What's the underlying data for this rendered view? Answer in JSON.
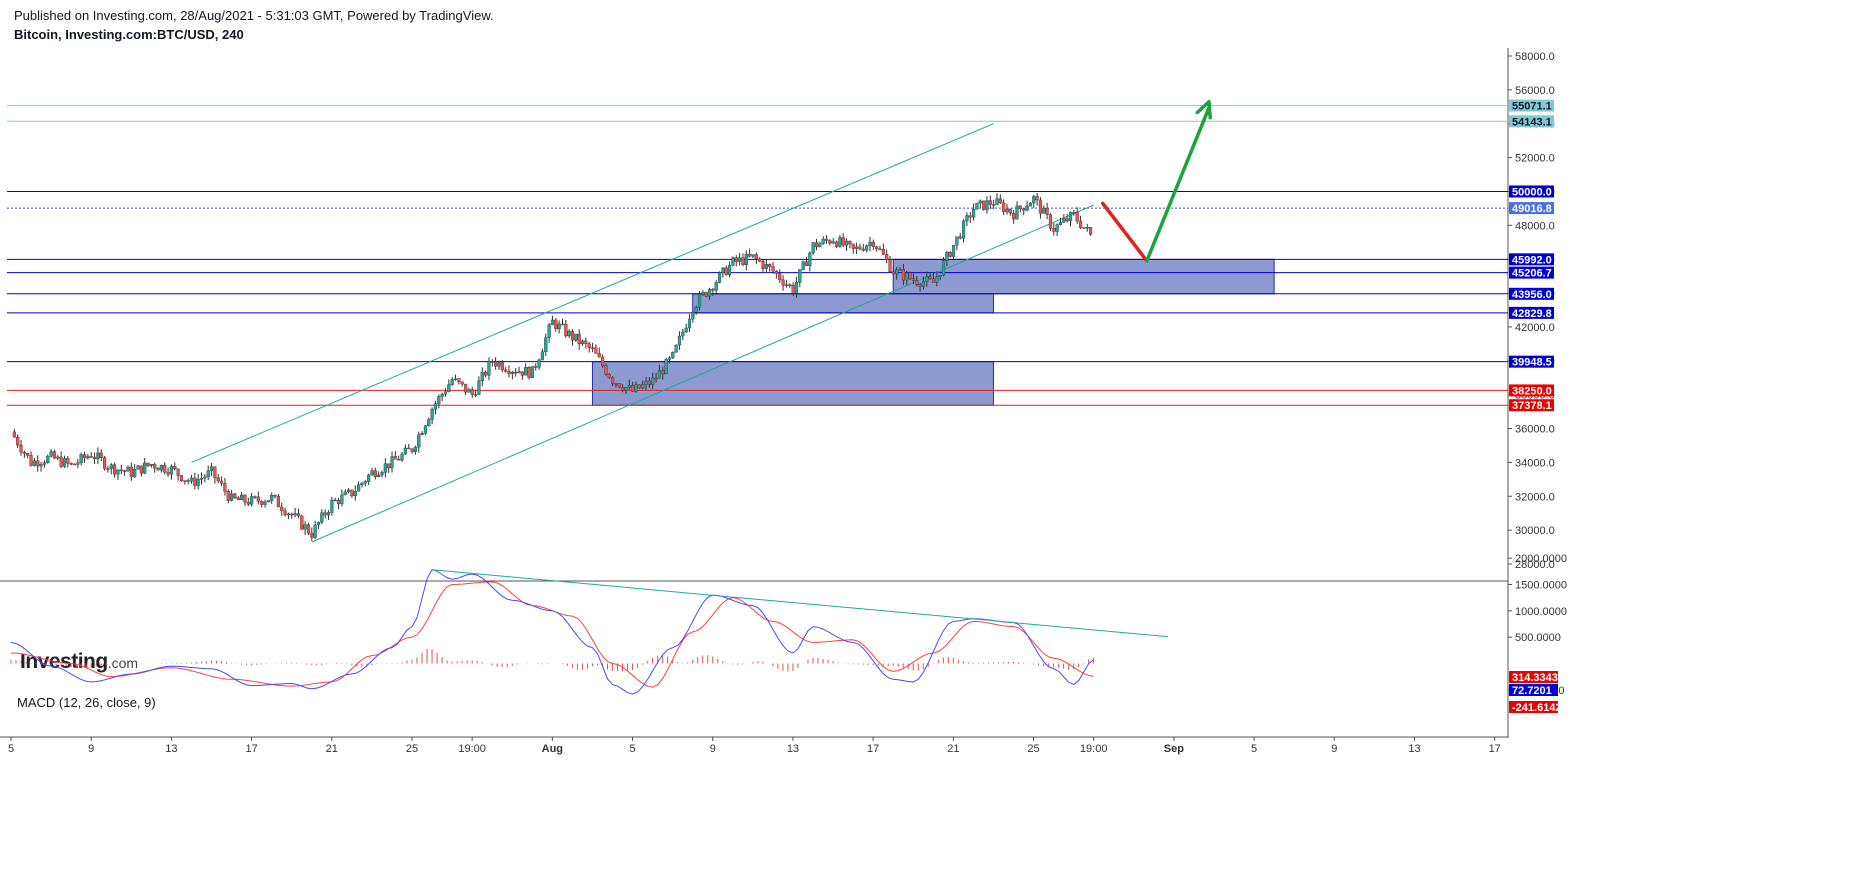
{
  "header": {
    "published": "Published on Investing.com, 28/Aug/2021 - 5:31:03 GMT, Powered by TradingView.",
    "symbol": "Bitcoin, Investing.com:BTC/USD, 240"
  },
  "logo": {
    "main": "Investing",
    "suffix": ".com"
  },
  "colors": {
    "up_candle": "#26a69a",
    "down_candle": "#ef5350",
    "support_line": "#0000d0",
    "red_line": "#e02020",
    "cyan_line": "#80c8d8",
    "channel_line": "#26a69a",
    "zone_fill": "#5c6fbc",
    "macd_line": "#4a4af0",
    "signal_line": "#ff4040",
    "arrow_up": "#1aa53a",
    "arrow_down": "#e0201a"
  },
  "chart_data": [
    {
      "type": "candlestick",
      "ylim": [
        27000,
        59000
      ],
      "xlim": [
        "2021-07-05",
        "2021-09-17"
      ],
      "x_ticks": [
        {
          "date": "2021-07-05",
          "label": "5"
        },
        {
          "date": "2021-07-09",
          "label": "9"
        },
        {
          "date": "2021-07-13",
          "label": "13"
        },
        {
          "date": "2021-07-17",
          "label": "17"
        },
        {
          "date": "2021-07-21",
          "label": "21"
        },
        {
          "date": "2021-07-25",
          "label": "25"
        },
        {
          "date": "2021-07-28",
          "label": "19:00"
        },
        {
          "date": "2021-08-01",
          "label": "Aug"
        },
        {
          "date": "2021-08-05",
          "label": "5"
        },
        {
          "date": "2021-08-09",
          "label": "9"
        },
        {
          "date": "2021-08-13",
          "label": "13"
        },
        {
          "date": "2021-08-17",
          "label": "17"
        },
        {
          "date": "2021-08-21",
          "label": "21"
        },
        {
          "date": "2021-08-25",
          "label": "25"
        },
        {
          "date": "2021-08-28",
          "label": "19:00"
        },
        {
          "date": "2021-09-01",
          "label": "Sep"
        },
        {
          "date": "2021-09-05",
          "label": "5"
        },
        {
          "date": "2021-09-09",
          "label": "9"
        },
        {
          "date": "2021-09-13",
          "label": "13"
        },
        {
          "date": "2021-09-17",
          "label": "17"
        }
      ],
      "y_ticks": [
        "28000.0",
        "30000.0",
        "32000.0",
        "34000.0",
        "36000.0",
        "38000.0",
        "40000.0",
        "42000.0",
        "44000.0",
        "46000.0",
        "48000.0",
        "50000.0",
        "52000.0",
        "54000.0",
        "56000.0",
        "58000.0"
      ],
      "price_levels": [
        {
          "value": 55071.1,
          "label": "55071.1",
          "kind": "cyan"
        },
        {
          "value": 54143.1,
          "label": "54143.1",
          "kind": "cyan"
        },
        {
          "value": 50000.0,
          "label": "50000.0",
          "kind": "blue"
        },
        {
          "value": 49016.8,
          "label": "49016.8",
          "kind": "current"
        },
        {
          "value": 45992.0,
          "label": "45992.0",
          "kind": "blue"
        },
        {
          "value": 45206.7,
          "label": "45206.7",
          "kind": "blue"
        },
        {
          "value": 43956.0,
          "label": "43956.0",
          "kind": "blue"
        },
        {
          "value": 42829.8,
          "label": "42829.8",
          "kind": "blue"
        },
        {
          "value": 39948.5,
          "label": "39948.5",
          "kind": "blue"
        },
        {
          "value": 38250.0,
          "label": "38250.0",
          "kind": "red"
        },
        {
          "value": 37378.1,
          "label": "37378.1",
          "kind": "red"
        }
      ],
      "zones": [
        {
          "from": "2021-08-18",
          "to": "2021-09-06",
          "low": 43956,
          "high": 45992
        },
        {
          "from": "2021-08-08",
          "to": "2021-08-23",
          "low": 42829.8,
          "high": 43956
        },
        {
          "from": "2021-08-03",
          "to": "2021-08-23",
          "low": 37378.1,
          "high": 39948.5
        }
      ],
      "channel": {
        "lower": [
          {
            "date": "2021-07-20",
            "price": 29300
          },
          {
            "date": "2021-08-28",
            "price": 49200
          }
        ],
        "upper": [
          {
            "date": "2021-07-14",
            "price": 34000
          },
          {
            "date": "2021-08-23",
            "price": 54000
          }
        ]
      },
      "projection": [
        {
          "date": "2021-08-28",
          "price": 49300
        },
        {
          "date": "2021-08-30",
          "price": 45900
        },
        {
          "date": "2021-09-02",
          "price": 55300
        }
      ],
      "close_path": [
        {
          "date": "2021-07-05",
          "price": 35800
        },
        {
          "date": "2021-07-06",
          "price": 34000
        },
        {
          "date": "2021-07-07",
          "price": 34300
        },
        {
          "date": "2021-07-08",
          "price": 33800
        },
        {
          "date": "2021-07-09",
          "price": 34500
        },
        {
          "date": "2021-07-10",
          "price": 33700
        },
        {
          "date": "2021-07-11",
          "price": 33400
        },
        {
          "date": "2021-07-12",
          "price": 33900
        },
        {
          "date": "2021-07-13",
          "price": 33600
        },
        {
          "date": "2021-07-14",
          "price": 32800
        },
        {
          "date": "2021-07-15",
          "price": 33400
        },
        {
          "date": "2021-07-16",
          "price": 31800
        },
        {
          "date": "2021-07-17",
          "price": 31700
        },
        {
          "date": "2021-07-18",
          "price": 31900
        },
        {
          "date": "2021-07-19",
          "price": 30900
        },
        {
          "date": "2021-07-20",
          "price": 29800
        },
        {
          "date": "2021-07-21",
          "price": 31600
        },
        {
          "date": "2021-07-22",
          "price": 32200
        },
        {
          "date": "2021-07-23",
          "price": 33400
        },
        {
          "date": "2021-07-24",
          "price": 34000
        },
        {
          "date": "2021-07-25",
          "price": 34800
        },
        {
          "date": "2021-07-26",
          "price": 37200
        },
        {
          "date": "2021-07-27",
          "price": 38900
        },
        {
          "date": "2021-07-28",
          "price": 38000
        },
        {
          "date": "2021-07-29",
          "price": 40000
        },
        {
          "date": "2021-07-30",
          "price": 39500
        },
        {
          "date": "2021-07-31",
          "price": 39300
        },
        {
          "date": "2021-08-01",
          "price": 42300
        },
        {
          "date": "2021-08-02",
          "price": 41400
        },
        {
          "date": "2021-08-03",
          "price": 40600
        },
        {
          "date": "2021-08-04",
          "price": 38900
        },
        {
          "date": "2021-08-05",
          "price": 38200
        },
        {
          "date": "2021-08-06",
          "price": 38800
        },
        {
          "date": "2021-08-07",
          "price": 40200
        },
        {
          "date": "2021-08-08",
          "price": 43200
        },
        {
          "date": "2021-08-09",
          "price": 44500
        },
        {
          "date": "2021-08-10",
          "price": 45800
        },
        {
          "date": "2021-08-11",
          "price": 46100
        },
        {
          "date": "2021-08-12",
          "price": 45300
        },
        {
          "date": "2021-08-13",
          "price": 44200
        },
        {
          "date": "2021-08-14",
          "price": 46800
        },
        {
          "date": "2021-08-15",
          "price": 47200
        },
        {
          "date": "2021-08-16",
          "price": 46500
        },
        {
          "date": "2021-08-17",
          "price": 47100
        },
        {
          "date": "2021-08-18",
          "price": 45300
        },
        {
          "date": "2021-08-19",
          "price": 44800
        },
        {
          "date": "2021-08-20",
          "price": 44600
        },
        {
          "date": "2021-08-21",
          "price": 46800
        },
        {
          "date": "2021-08-22",
          "price": 49000
        },
        {
          "date": "2021-08-23",
          "price": 49400
        },
        {
          "date": "2021-08-24",
          "price": 48700
        },
        {
          "date": "2021-08-25",
          "price": 49600
        },
        {
          "date": "2021-08-26",
          "price": 47800
        },
        {
          "date": "2021-08-27",
          "price": 48600
        },
        {
          "date": "2021-08-28",
          "price": 47200
        }
      ]
    },
    {
      "type": "line+histogram",
      "title": "MACD (12, 26, close, 9)",
      "ylim": [
        -700,
        2100
      ],
      "y_ticks": [
        "-500.0000",
        "500.0000",
        "1000.0000",
        "1500.0000",
        "2000.0000"
      ],
      "badges": [
        {
          "value": 314.3343,
          "label": "314.3343",
          "kind": "red"
        },
        {
          "value": 72.7201,
          "label": "72.7201",
          "kind": "blue"
        },
        {
          "value": -241.6142,
          "label": "-241.6142",
          "kind": "red"
        }
      ],
      "trendline": [
        {
          "date": "2021-07-26",
          "price": 1780
        },
        {
          "date": "2021-08-31",
          "price": 510
        }
      ],
      "macd": [
        {
          "date": "2021-07-05",
          "value": 400
        },
        {
          "date": "2021-07-07",
          "value": -50
        },
        {
          "date": "2021-07-09",
          "value": -350
        },
        {
          "date": "2021-07-11",
          "value": -200
        },
        {
          "date": "2021-07-13",
          "value": -50
        },
        {
          "date": "2021-07-15",
          "value": -100
        },
        {
          "date": "2021-07-17",
          "value": -420
        },
        {
          "date": "2021-07-19",
          "value": -380
        },
        {
          "date": "2021-07-20",
          "value": -480
        },
        {
          "date": "2021-07-22",
          "value": -200
        },
        {
          "date": "2021-07-24",
          "value": 300
        },
        {
          "date": "2021-07-25",
          "value": 700
        },
        {
          "date": "2021-07-26",
          "value": 1780
        },
        {
          "date": "2021-07-27",
          "value": 1600
        },
        {
          "date": "2021-07-28",
          "value": 1700
        },
        {
          "date": "2021-07-30",
          "value": 1200
        },
        {
          "date": "2021-08-01",
          "value": 1000
        },
        {
          "date": "2021-08-03",
          "value": 300
        },
        {
          "date": "2021-08-04",
          "value": -400
        },
        {
          "date": "2021-08-05",
          "value": -580
        },
        {
          "date": "2021-08-07",
          "value": 300
        },
        {
          "date": "2021-08-09",
          "value": 1300
        },
        {
          "date": "2021-08-11",
          "value": 1100
        },
        {
          "date": "2021-08-13",
          "value": 200
        },
        {
          "date": "2021-08-14",
          "value": 700
        },
        {
          "date": "2021-08-16",
          "value": 400
        },
        {
          "date": "2021-08-18",
          "value": -300
        },
        {
          "date": "2021-08-19",
          "value": -350
        },
        {
          "date": "2021-08-21",
          "value": 800
        },
        {
          "date": "2021-08-22",
          "value": 850
        },
        {
          "date": "2021-08-24",
          "value": 780
        },
        {
          "date": "2021-08-26",
          "value": -100
        },
        {
          "date": "2021-08-27",
          "value": -400
        },
        {
          "date": "2021-08-28",
          "value": 72.72
        }
      ],
      "signal": [
        {
          "date": "2021-07-05",
          "value": 200
        },
        {
          "date": "2021-07-08",
          "value": 0
        },
        {
          "date": "2021-07-10",
          "value": -250
        },
        {
          "date": "2021-07-13",
          "value": -80
        },
        {
          "date": "2021-07-16",
          "value": -300
        },
        {
          "date": "2021-07-19",
          "value": -430
        },
        {
          "date": "2021-07-21",
          "value": -350
        },
        {
          "date": "2021-07-23",
          "value": 150
        },
        {
          "date": "2021-07-25",
          "value": 500
        },
        {
          "date": "2021-07-27",
          "value": 1500
        },
        {
          "date": "2021-07-29",
          "value": 1550
        },
        {
          "date": "2021-07-31",
          "value": 1100
        },
        {
          "date": "2021-08-02",
          "value": 900
        },
        {
          "date": "2021-08-04",
          "value": 0
        },
        {
          "date": "2021-08-06",
          "value": -450
        },
        {
          "date": "2021-08-08",
          "value": 600
        },
        {
          "date": "2021-08-10",
          "value": 1250
        },
        {
          "date": "2021-08-12",
          "value": 800
        },
        {
          "date": "2021-08-14",
          "value": 400
        },
        {
          "date": "2021-08-16",
          "value": 450
        },
        {
          "date": "2021-08-18",
          "value": -150
        },
        {
          "date": "2021-08-20",
          "value": 200
        },
        {
          "date": "2021-08-22",
          "value": 800
        },
        {
          "date": "2021-08-24",
          "value": 700
        },
        {
          "date": "2021-08-26",
          "value": 100
        },
        {
          "date": "2021-08-28",
          "value": -241.61
        }
      ]
    }
  ]
}
